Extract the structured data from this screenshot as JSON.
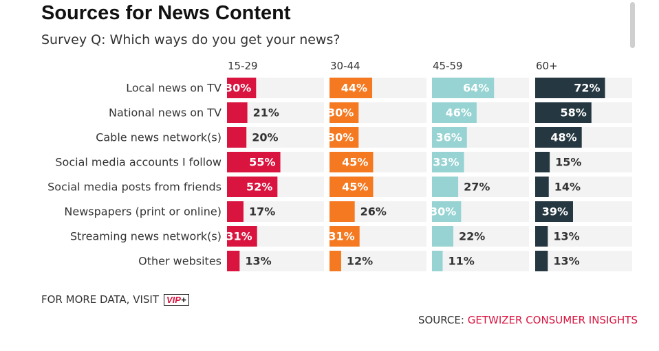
{
  "header": {
    "title": "Sources for News Content",
    "subtitle": "Survey Q: Which ways do you get your news?"
  },
  "footer": {
    "more_data_label": "FOR MORE DATA, VISIT",
    "vip_badge_text": "VIP",
    "vip_badge_plus": "+",
    "source_label": "SOURCE:",
    "source_name": "GETWIZER CONSUMER INSIGHTS"
  },
  "colors": {
    "track": "#f3f3f3",
    "accent_red": "#d9143f",
    "series": [
      "#d9143f",
      "#f47920",
      "#96d3d2",
      "#253740"
    ],
    "label_dark": "#333333",
    "label_light": "#ffffff"
  },
  "chart_data": {
    "type": "bar",
    "orientation": "horizontal",
    "layout": "small-multiples",
    "grid": false,
    "xlim": [
      0,
      100
    ],
    "unit": "%",
    "categories": [
      "Local news on TV",
      "National news on TV",
      "Cable news network(s)",
      "Social media accounts I follow",
      "Social media posts from friends",
      "Newspapers (print or online)",
      "Streaming news network(s)",
      "Other websites"
    ],
    "series": [
      {
        "name": "15-29",
        "values": [
          30,
          21,
          20,
          55,
          52,
          17,
          31,
          13
        ]
      },
      {
        "name": "30-44",
        "values": [
          44,
          30,
          30,
          45,
          45,
          26,
          31,
          12
        ]
      },
      {
        "name": "45-59",
        "values": [
          64,
          46,
          36,
          33,
          27,
          30,
          22,
          11
        ]
      },
      {
        "name": "60+",
        "values": [
          72,
          58,
          48,
          15,
          14,
          39,
          13,
          13
        ]
      }
    ]
  }
}
